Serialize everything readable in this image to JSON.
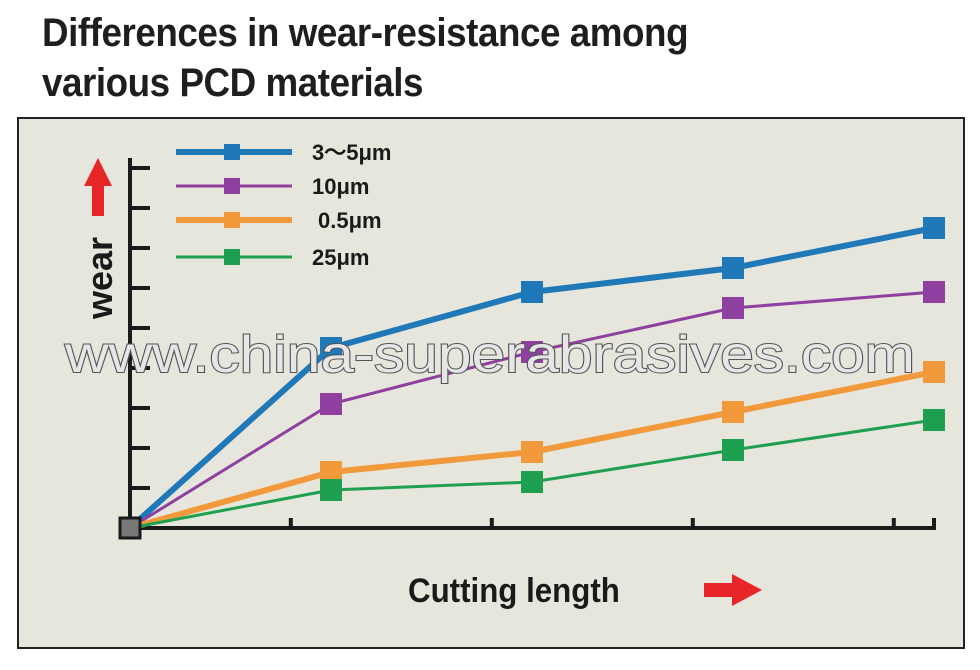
{
  "title_line1": "Differences in wear-resistance among",
  "title_line2": "various PCD materials",
  "watermark": "www.china-superabrasives.com",
  "colors": {
    "background": "#e6e6dc",
    "axis": "#1a1a1a",
    "arrow": "#e8262a"
  },
  "chart_data": {
    "type": "line",
    "title": "Differences in wear-resistance among various PCD materials",
    "xlabel": "Cutting  length",
    "ylabel": "wear",
    "x": [
      0,
      1,
      2,
      3,
      4
    ],
    "xlim": [
      0,
      4
    ],
    "ylim": [
      0,
      9
    ],
    "y_ticks": [
      1,
      2,
      3,
      4,
      5,
      6,
      7,
      8,
      9
    ],
    "x_ticks": [
      0.8,
      1.8,
      2.8,
      3.8,
      4.0
    ],
    "grid": false,
    "legend_position": "top-left",
    "series": [
      {
        "name": "3～5μm",
        "color": "#1f78b8",
        "width": 6,
        "x": [
          0,
          1,
          2,
          3,
          4
        ],
        "values": [
          0,
          4.5,
          5.9,
          6.5,
          7.5
        ]
      },
      {
        "name": "10μm",
        "color": "#8e3fa0",
        "width": 3,
        "x": [
          0,
          1,
          2,
          3,
          4
        ],
        "values": [
          0,
          3.1,
          4.4,
          5.5,
          5.9
        ]
      },
      {
        "name": "0.5μm",
        "color": "#f29a3b",
        "width": 6,
        "x": [
          0,
          1,
          2,
          3,
          4
        ],
        "values": [
          0,
          1.4,
          1.9,
          2.9,
          3.9
        ]
      },
      {
        "name": "25μm",
        "color": "#1fa050",
        "width": 3,
        "x": [
          0,
          1,
          2,
          3,
          4
        ],
        "values": [
          0,
          0.95,
          1.15,
          1.95,
          2.7
        ]
      }
    ]
  }
}
